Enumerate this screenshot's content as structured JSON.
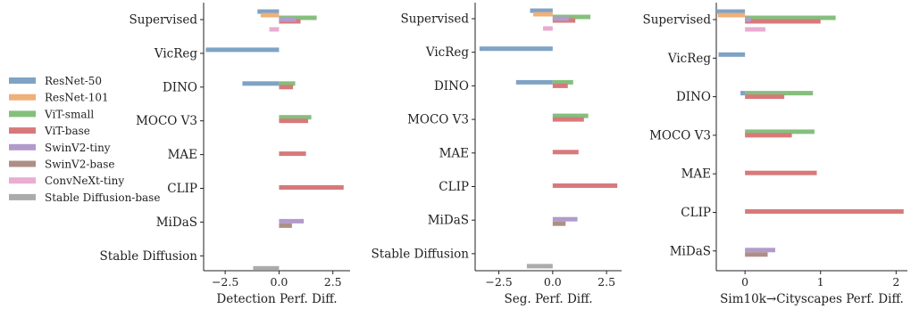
{
  "legend": {
    "position": "left",
    "entries": [
      {
        "name": "ResNet-50",
        "color": "#7fa3c5"
      },
      {
        "name": "ResNet-101",
        "color": "#efb07a"
      },
      {
        "name": "ViT-small",
        "color": "#85bf7d"
      },
      {
        "name": "ViT-base",
        "color": "#d7797a"
      },
      {
        "name": "SwinV2-tiny",
        "color": "#b29bcb"
      },
      {
        "name": "SwinV2-base",
        "color": "#ad8f86"
      },
      {
        "name": "ConvNeXt-tiny",
        "color": "#e9acd2"
      },
      {
        "name": "Stable Diffusion-base",
        "color": "#ababab"
      }
    ]
  },
  "chart_data": [
    {
      "type": "bar",
      "orientation": "horizontal",
      "xlabel": "Detection Perf. Diff.",
      "xlim": [
        -3.5,
        3.3
      ],
      "xticks": [
        -2.5,
        0.0,
        2.5
      ],
      "xtick_labels": [
        "−2.5",
        "0.0",
        "2.5"
      ],
      "categories": [
        "Supervised",
        "VicReg",
        "DINO",
        "MOCO V3",
        "MAE",
        "CLIP",
        "MiDaS",
        "Stable Diffusion"
      ],
      "series": [
        {
          "name": "ResNet-50",
          "values": [
            -1.0,
            -3.4,
            -1.7,
            null,
            null,
            null,
            null,
            null
          ]
        },
        {
          "name": "ResNet-101",
          "values": [
            -0.85,
            null,
            null,
            null,
            null,
            null,
            null,
            null
          ]
        },
        {
          "name": "ViT-small",
          "values": [
            1.75,
            null,
            0.75,
            1.5,
            null,
            null,
            null,
            null
          ]
        },
        {
          "name": "ViT-base",
          "values": [
            1.0,
            null,
            0.65,
            1.35,
            1.25,
            3.0,
            null,
            null
          ]
        },
        {
          "name": "SwinV2-tiny",
          "values": [
            0.8,
            null,
            null,
            null,
            null,
            null,
            1.15,
            null
          ]
        },
        {
          "name": "SwinV2-base",
          "values": [
            null,
            null,
            null,
            null,
            null,
            null,
            0.6,
            null
          ]
        },
        {
          "name": "ConvNeXt-tiny",
          "values": [
            -0.45,
            null,
            null,
            null,
            null,
            null,
            null,
            null
          ]
        },
        {
          "name": "Stable Diffusion-base",
          "values": [
            null,
            null,
            null,
            null,
            null,
            null,
            null,
            -1.2
          ]
        }
      ]
    },
    {
      "type": "bar",
      "orientation": "horizontal",
      "xlabel": "Seg. Perf. Diff.",
      "xlim": [
        -3.6,
        3.2
      ],
      "xticks": [
        -2.5,
        0.0,
        2.5
      ],
      "xtick_labels": [
        "−2.5",
        "0.0",
        "2.5"
      ],
      "categories": [
        "Supervised",
        "VicReg",
        "DINO",
        "MOCO V3",
        "MAE",
        "CLIP",
        "MiDaS",
        "Stable Diffusion"
      ],
      "series": [
        {
          "name": "ResNet-50",
          "values": [
            -1.05,
            -3.4,
            -1.7,
            null,
            null,
            null,
            null,
            null
          ]
        },
        {
          "name": "ResNet-101",
          "values": [
            -0.9,
            null,
            null,
            null,
            null,
            null,
            null,
            null
          ]
        },
        {
          "name": "ViT-small",
          "values": [
            1.75,
            null,
            0.95,
            1.65,
            null,
            null,
            null,
            null
          ]
        },
        {
          "name": "ViT-base",
          "values": [
            1.05,
            null,
            0.7,
            1.45,
            1.2,
            3.0,
            null,
            null
          ]
        },
        {
          "name": "SwinV2-tiny",
          "values": [
            0.75,
            null,
            null,
            null,
            null,
            null,
            1.15,
            null
          ]
        },
        {
          "name": "SwinV2-base",
          "values": [
            null,
            null,
            null,
            null,
            null,
            null,
            0.6,
            null
          ]
        },
        {
          "name": "ConvNeXt-tiny",
          "values": [
            -0.45,
            null,
            null,
            null,
            null,
            null,
            null,
            null
          ]
        },
        {
          "name": "Stable Diffusion-base",
          "values": [
            null,
            null,
            null,
            null,
            null,
            null,
            null,
            -1.2
          ]
        }
      ]
    },
    {
      "type": "bar",
      "orientation": "horizontal",
      "xlabel": "Sim10k→Cityscapes Perf. Diff.",
      "xlim": [
        -0.38,
        2.15
      ],
      "xticks": [
        0,
        1,
        2
      ],
      "xtick_labels": [
        "0",
        "1",
        "2"
      ],
      "categories": [
        "Supervised",
        "VicReg",
        "DINO",
        "MOCO V3",
        "MAE",
        "CLIP",
        "MiDaS"
      ],
      "series": [
        {
          "name": "ResNet-50",
          "values": [
            -0.38,
            -0.35,
            -0.06,
            null,
            null,
            null,
            null
          ]
        },
        {
          "name": "ResNet-101",
          "values": [
            -0.36,
            null,
            null,
            null,
            null,
            null,
            null
          ]
        },
        {
          "name": "ViT-small",
          "values": [
            1.2,
            null,
            0.9,
            0.92,
            null,
            null,
            null
          ]
        },
        {
          "name": "ViT-base",
          "values": [
            1.0,
            null,
            0.52,
            0.62,
            0.95,
            2.1,
            null
          ]
        },
        {
          "name": "SwinV2-tiny",
          "values": [
            0.08,
            null,
            null,
            null,
            null,
            null,
            0.4
          ]
        },
        {
          "name": "SwinV2-base",
          "values": [
            null,
            null,
            null,
            null,
            null,
            null,
            0.3
          ]
        },
        {
          "name": "ConvNeXt-tiny",
          "values": [
            0.27,
            null,
            null,
            null,
            null,
            null,
            null
          ]
        },
        {
          "name": "Stable Diffusion-base",
          "values": [
            null,
            null,
            null,
            null,
            null,
            null,
            null
          ]
        }
      ]
    }
  ]
}
